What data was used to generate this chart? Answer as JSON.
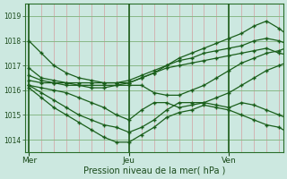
{
  "title": "",
  "xlabel": "Pression niveau de la mer( hPa )",
  "ylim": [
    1013.5,
    1019.5
  ],
  "yticks": [
    1014,
    1015,
    1016,
    1017,
    1018,
    1019
  ],
  "background_color": "#cce8e0",
  "plot_bg_color": "#cce8e0",
  "grid_color_h": "#88b888",
  "grid_color_v": "#d4a0a0",
  "line_color": "#1a5e1a",
  "marker_color": "#1a5e1a",
  "day_labels": [
    "Mer",
    "Jeu",
    "Ven"
  ],
  "day_positions": [
    0,
    48,
    96
  ],
  "xlim": [
    -2,
    122
  ],
  "series": [
    [
      1018.0,
      1017.5,
      1017.0,
      1016.7,
      1016.5,
      1016.4,
      1016.3,
      1016.3,
      1016.3,
      1016.5,
      1016.7,
      1017.0,
      1017.3,
      1017.5,
      1017.7,
      1017.9,
      1018.1,
      1018.3,
      1018.6,
      1018.8,
      1018.5,
      1018.1
    ],
    [
      1016.9,
      1016.5,
      1016.4,
      1016.3,
      1016.3,
      1016.3,
      1016.3,
      1016.3,
      1016.4,
      1016.6,
      1016.8,
      1017.0,
      1017.2,
      1017.3,
      1017.5,
      1017.6,
      1017.7,
      1017.8,
      1018.0,
      1018.1,
      1018.0,
      1017.8
    ],
    [
      1016.6,
      1016.4,
      1016.3,
      1016.3,
      1016.2,
      1016.2,
      1016.2,
      1016.2,
      1016.3,
      1016.5,
      1016.7,
      1016.9,
      1017.0,
      1017.1,
      1017.2,
      1017.3,
      1017.4,
      1017.5,
      1017.6,
      1017.7,
      1017.5,
      1017.4
    ],
    [
      1016.4,
      1016.3,
      1016.3,
      1016.2,
      1016.2,
      1016.1,
      1016.1,
      1016.2,
      1016.2,
      1016.2,
      1015.9,
      1015.8,
      1015.8,
      1016.0,
      1016.2,
      1016.5,
      1016.8,
      1017.1,
      1017.3,
      1017.5,
      1017.6,
      1017.8
    ],
    [
      1016.2,
      1016.1,
      1016.0,
      1015.9,
      1015.7,
      1015.5,
      1015.3,
      1015.0,
      1014.8,
      1015.2,
      1015.5,
      1015.5,
      1015.3,
      1015.4,
      1015.5,
      1015.7,
      1015.9,
      1016.2,
      1016.5,
      1016.8,
      1017.0,
      1017.2
    ],
    [
      1016.2,
      1015.9,
      1015.6,
      1015.3,
      1015.0,
      1014.8,
      1014.6,
      1014.5,
      1014.3,
      1014.5,
      1014.8,
      1015.2,
      1015.5,
      1015.5,
      1015.5,
      1015.4,
      1015.3,
      1015.5,
      1015.4,
      1015.2,
      1015.0,
      1014.8
    ],
    [
      1016.1,
      1015.7,
      1015.3,
      1015.0,
      1014.7,
      1014.4,
      1014.1,
      1013.9,
      1013.9,
      1014.2,
      1014.5,
      1014.9,
      1015.1,
      1015.2,
      1015.4,
      1015.3,
      1015.2,
      1015.0,
      1014.8,
      1014.6,
      1014.5,
      1014.2
    ]
  ],
  "x_points": [
    0,
    6,
    12,
    18,
    24,
    30,
    36,
    42,
    48,
    54,
    60,
    66,
    72,
    78,
    84,
    90,
    96,
    102,
    108,
    114,
    120,
    126
  ],
  "num_v_lines": 21,
  "v_line_step": 6
}
